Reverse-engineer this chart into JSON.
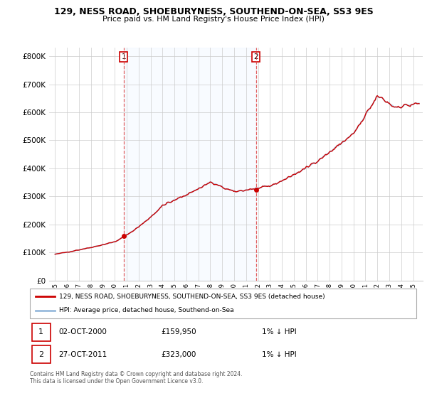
{
  "title": "129, NESS ROAD, SHOEBURYNESS, SOUTHEND-ON-SEA, SS3 9ES",
  "subtitle": "Price paid vs. HM Land Registry's House Price Index (HPI)",
  "legend_line1": "129, NESS ROAD, SHOEBURYNESS, SOUTHEND-ON-SEA, SS3 9ES (detached house)",
  "legend_line2": "HPI: Average price, detached house, Southend-on-Sea",
  "annotation1_date": "02-OCT-2000",
  "annotation1_price": "£159,950",
  "annotation1_hpi": "1% ↓ HPI",
  "annotation2_date": "27-OCT-2011",
  "annotation2_price": "£323,000",
  "annotation2_hpi": "1% ↓ HPI",
  "footer": "Contains HM Land Registry data © Crown copyright and database right 2024.\nThis data is licensed under the Open Government Licence v3.0.",
  "price_color": "#cc0000",
  "hpi_color": "#99bbdd",
  "vline_color": "#dd4444",
  "bg_fill_color": "#ddeeff",
  "annotation_box_color": "#cc0000",
  "annotation_text_color": "#111111",
  "ylim": [
    0,
    830000
  ],
  "yticks": [
    0,
    100000,
    200000,
    300000,
    400000,
    500000,
    600000,
    700000,
    800000
  ],
  "ytick_labels": [
    "£0",
    "£100K",
    "£200K",
    "£300K",
    "£400K",
    "£500K",
    "£600K",
    "£700K",
    "£800K"
  ],
  "sale1_x": 2000.75,
  "sale1_y": 159950,
  "sale2_x": 2011.82,
  "sale2_y": 323000,
  "vline1_x": 2000.75,
  "vline2_x": 2011.82,
  "xlim_left": 1994.5,
  "xlim_right": 2025.8
}
